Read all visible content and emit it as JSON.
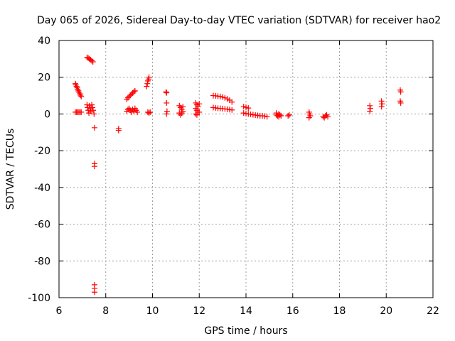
{
  "chart_data": {
    "type": "scatter",
    "title": "Day 065 of 2026, Sidereal Day-to-day VTEC variation (SDTVAR) for receiver hao2",
    "xlabel": "GPS time / hours",
    "ylabel": "SDTVAR / TECUs",
    "xlim": [
      6,
      22
    ],
    "ylim": [
      -100,
      40
    ],
    "xticks": [
      6,
      8,
      10,
      12,
      14,
      16,
      18,
      20,
      22
    ],
    "yticks": [
      -100,
      -80,
      -60,
      -40,
      -20,
      0,
      20,
      40
    ],
    "grid": true,
    "marker": "plus",
    "color": "#ff0000",
    "series": [
      {
        "name": "SDTVAR",
        "points": [
          [
            6.7,
            16.5
          ],
          [
            6.72,
            15.8
          ],
          [
            6.75,
            15.0
          ],
          [
            6.78,
            14.2
          ],
          [
            6.8,
            13.4
          ],
          [
            6.83,
            12.6
          ],
          [
            6.86,
            11.8
          ],
          [
            6.89,
            11.0
          ],
          [
            6.92,
            10.2
          ],
          [
            6.95,
            9.5
          ],
          [
            6.7,
            1.0
          ],
          [
            6.75,
            1.0
          ],
          [
            6.8,
            1.0
          ],
          [
            6.85,
            1.0
          ],
          [
            6.9,
            1.0
          ],
          [
            6.95,
            1.0
          ],
          [
            7.2,
            30.8
          ],
          [
            7.25,
            30.4
          ],
          [
            7.3,
            30.0
          ],
          [
            7.35,
            29.5
          ],
          [
            7.4,
            29.0
          ],
          [
            7.45,
            28.4
          ],
          [
            7.2,
            5.0
          ],
          [
            7.22,
            3.5
          ],
          [
            7.25,
            2.0
          ],
          [
            7.28,
            0.5
          ],
          [
            7.3,
            4.5
          ],
          [
            7.33,
            3.0
          ],
          [
            7.36,
            1.5
          ],
          [
            7.4,
            5.0
          ],
          [
            7.43,
            3.5
          ],
          [
            7.46,
            2.0
          ],
          [
            7.5,
            0.0
          ],
          [
            7.52,
            -7.5
          ],
          [
            7.52,
            -27.0
          ],
          [
            7.52,
            -28.5
          ],
          [
            7.52,
            -93.0
          ],
          [
            7.52,
            -95.0
          ],
          [
            7.52,
            -97.0
          ],
          [
            8.55,
            -8.0
          ],
          [
            8.55,
            -9.0
          ],
          [
            8.9,
            8.0
          ],
          [
            8.95,
            8.8
          ],
          [
            9.0,
            9.5
          ],
          [
            9.05,
            10.2
          ],
          [
            9.1,
            10.8
          ],
          [
            9.15,
            11.4
          ],
          [
            9.2,
            12.0
          ],
          [
            9.25,
            12.6
          ],
          [
            8.9,
            1.5
          ],
          [
            8.95,
            2.5
          ],
          [
            9.0,
            3.0
          ],
          [
            9.05,
            2.0
          ],
          [
            9.1,
            1.0
          ],
          [
            9.15,
            2.5
          ],
          [
            9.2,
            1.5
          ],
          [
            9.25,
            3.0
          ],
          [
            9.3,
            2.0
          ],
          [
            9.35,
            1.0
          ],
          [
            9.75,
            15.0
          ],
          [
            9.78,
            16.5
          ],
          [
            9.8,
            18.0
          ],
          [
            9.83,
            19.0
          ],
          [
            9.85,
            20.0
          ],
          [
            9.8,
            1.0
          ],
          [
            9.85,
            0.5
          ],
          [
            9.9,
            1.0
          ],
          [
            10.58,
            12.0
          ],
          [
            10.6,
            11.5
          ],
          [
            10.6,
            6.0
          ],
          [
            10.62,
            1.5
          ],
          [
            10.6,
            0.0
          ],
          [
            11.15,
            4.5
          ],
          [
            11.2,
            3.5
          ],
          [
            11.25,
            2.5
          ],
          [
            11.3,
            1.5
          ],
          [
            11.15,
            0.5
          ],
          [
            11.2,
            -0.5
          ],
          [
            11.25,
            0.5
          ],
          [
            11.3,
            4.0
          ],
          [
            11.85,
            6.0
          ],
          [
            11.9,
            5.0
          ],
          [
            11.95,
            4.0
          ],
          [
            11.85,
            3.0
          ],
          [
            11.9,
            2.0
          ],
          [
            11.95,
            1.0
          ],
          [
            11.85,
            0.0
          ],
          [
            11.9,
            -0.5
          ],
          [
            12.0,
            5.5
          ],
          [
            12.0,
            1.0
          ],
          [
            12.6,
            10.0
          ],
          [
            12.7,
            9.9
          ],
          [
            12.8,
            9.7
          ],
          [
            12.9,
            9.5
          ],
          [
            13.0,
            9.2
          ],
          [
            13.1,
            8.8
          ],
          [
            13.2,
            8.2
          ],
          [
            13.3,
            7.5
          ],
          [
            13.4,
            6.5
          ],
          [
            12.6,
            3.5
          ],
          [
            12.7,
            3.3
          ],
          [
            12.8,
            3.1
          ],
          [
            12.9,
            3.0
          ],
          [
            13.0,
            2.9
          ],
          [
            13.1,
            2.8
          ],
          [
            13.2,
            2.6
          ],
          [
            13.3,
            2.4
          ],
          [
            13.4,
            2.2
          ],
          [
            13.9,
            4.0
          ],
          [
            14.0,
            3.6
          ],
          [
            14.1,
            3.2
          ],
          [
            13.9,
            0.5
          ],
          [
            14.0,
            0.2
          ],
          [
            14.1,
            0.0
          ],
          [
            14.2,
            -0.2
          ],
          [
            14.3,
            -0.4
          ],
          [
            14.4,
            -0.6
          ],
          [
            14.5,
            -0.8
          ],
          [
            14.6,
            -1.0
          ],
          [
            14.7,
            -1.0
          ],
          [
            14.8,
            -1.2
          ],
          [
            14.9,
            -1.5
          ],
          [
            15.3,
            -0.5
          ],
          [
            15.35,
            -1.0
          ],
          [
            15.4,
            -1.5
          ],
          [
            15.45,
            -0.5
          ],
          [
            15.5,
            -1.0
          ],
          [
            15.3,
            0.5
          ],
          [
            15.4,
            0.0
          ],
          [
            15.8,
            -1.0
          ],
          [
            15.85,
            -0.5
          ],
          [
            16.7,
            1.0
          ],
          [
            16.72,
            0.0
          ],
          [
            16.75,
            -1.0
          ],
          [
            16.7,
            -2.0
          ],
          [
            17.3,
            -1.5
          ],
          [
            17.4,
            -1.0
          ],
          [
            17.5,
            -1.5
          ],
          [
            17.45,
            -0.5
          ],
          [
            17.35,
            -2.0
          ],
          [
            19.3,
            4.5
          ],
          [
            19.32,
            3.0
          ],
          [
            19.3,
            1.5
          ],
          [
            19.8,
            7.0
          ],
          [
            19.82,
            5.5
          ],
          [
            19.8,
            4.0
          ],
          [
            20.6,
            13.0
          ],
          [
            20.62,
            12.0
          ],
          [
            20.6,
            7.0
          ],
          [
            20.62,
            6.0
          ]
        ]
      }
    ]
  }
}
